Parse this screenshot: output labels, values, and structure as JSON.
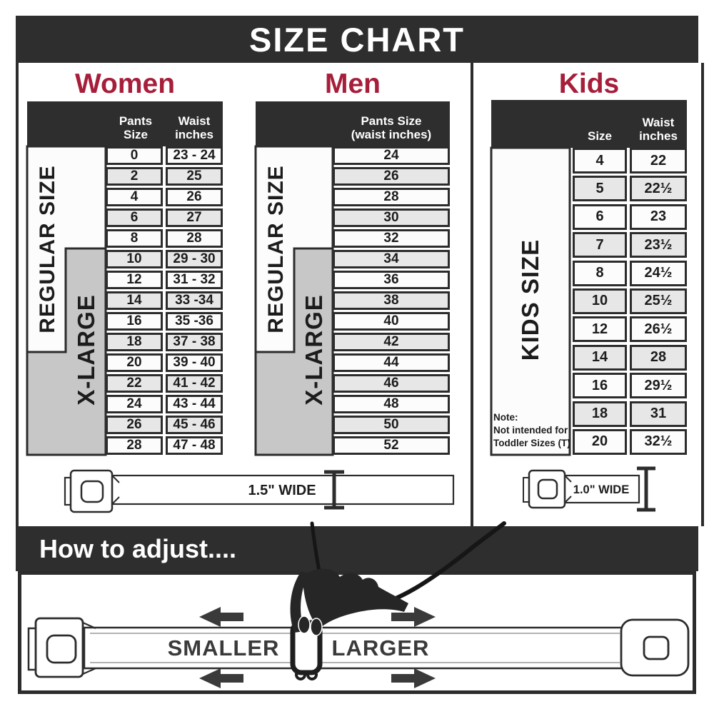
{
  "title": "SIZE CHART",
  "theme": {
    "dark": "#2e2e2e",
    "accent_red": "#a61e3a",
    "xlarge_gray": "#c7c7c7",
    "row_alt": "#e7e7e7"
  },
  "women": {
    "heading": "Women",
    "size_header": "Pants Size",
    "waist_header": "Waist\ninches",
    "regular_label": "REGULAR SIZE",
    "xlarge_label": "X-LARGE",
    "rows": [
      {
        "size": "0",
        "waist": "23 - 24"
      },
      {
        "size": "2",
        "waist": "25"
      },
      {
        "size": "4",
        "waist": "26"
      },
      {
        "size": "6",
        "waist": "27"
      },
      {
        "size": "8",
        "waist": "28"
      },
      {
        "size": "10",
        "waist": "29 - 30"
      },
      {
        "size": "12",
        "waist": "31 - 32"
      },
      {
        "size": "14",
        "waist": "33 -34"
      },
      {
        "size": "16",
        "waist": "35 -36"
      },
      {
        "size": "18",
        "waist": "37 - 38"
      },
      {
        "size": "20",
        "waist": "39 - 40"
      },
      {
        "size": "22",
        "waist": "41 - 42"
      },
      {
        "size": "24",
        "waist": "43 - 44"
      },
      {
        "size": "26",
        "waist": "45 - 46"
      },
      {
        "size": "28",
        "waist": "47 - 48"
      }
    ]
  },
  "men": {
    "heading": "Men",
    "header": "Pants Size\n(waist inches)",
    "regular_label": "REGULAR SIZE",
    "xlarge_label": "X-LARGE",
    "rows": [
      "24",
      "26",
      "28",
      "30",
      "32",
      "34",
      "36",
      "38",
      "40",
      "42",
      "44",
      "46",
      "48",
      "50",
      "52"
    ]
  },
  "kids": {
    "heading": "Kids",
    "size_header": "Size",
    "waist_header": "Waist\ninches",
    "kids_size_label": "KIDS SIZE",
    "note": "Note:\nNot intended for\nToddler Sizes (T)",
    "belt_width_label": "1.0\" WIDE",
    "rows": [
      {
        "size": "4",
        "waist": "22"
      },
      {
        "size": "5",
        "waist": "22½"
      },
      {
        "size": "6",
        "waist": "23"
      },
      {
        "size": "7",
        "waist": "23½"
      },
      {
        "size": "8",
        "waist": "24½"
      },
      {
        "size": "10",
        "waist": "25½"
      },
      {
        "size": "12",
        "waist": "26½"
      },
      {
        "size": "14",
        "waist": "28"
      },
      {
        "size": "16",
        "waist": "29½"
      },
      {
        "size": "18",
        "waist": "31"
      },
      {
        "size": "20",
        "waist": "32½"
      }
    ]
  },
  "adult_belt_width_label": "1.5\" WIDE",
  "adjust": {
    "heading": "How to adjust....",
    "smaller_label": "SMALLER",
    "larger_label": "LARGER"
  }
}
